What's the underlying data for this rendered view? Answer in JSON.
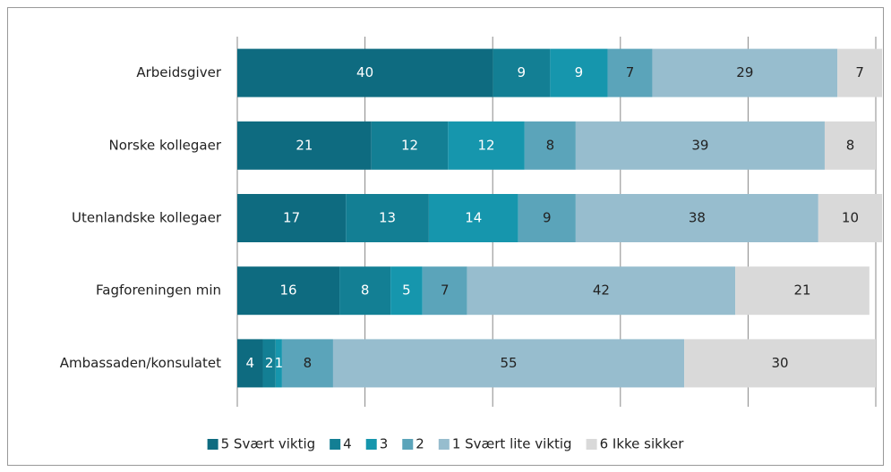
{
  "chart_data": {
    "type": "stacked_barh",
    "categories": [
      "Arbeidsgiver",
      "Norske kollegaer",
      "Utenlandske kollegaer",
      "Fagforeningen min",
      "Ambassaden/konsulatet"
    ],
    "series": [
      {
        "name": "5 Svært viktig",
        "color": "#0e6b80",
        "values": [
          40,
          21,
          17,
          16,
          4
        ]
      },
      {
        "name": "4",
        "color": "#137f94",
        "values": [
          9,
          12,
          13,
          8,
          2
        ]
      },
      {
        "name": "3",
        "color": "#1696ad",
        "values": [
          9,
          12,
          14,
          5,
          1
        ]
      },
      {
        "name": "2",
        "color": "#5ba4ba",
        "values": [
          7,
          8,
          9,
          7,
          8
        ]
      },
      {
        "name": "1 Svært lite viktig",
        "color": "#97bdce",
        "values": [
          29,
          39,
          38,
          42,
          55
        ]
      },
      {
        "name": "6 Ikke sikker",
        "color": "#d9d9d9",
        "values": [
          7,
          8,
          10,
          21,
          30
        ]
      }
    ],
    "xlim": [
      0,
      100
    ],
    "xticks": [
      0,
      20,
      40,
      60,
      80,
      100
    ],
    "grid": true,
    "legend": "bottom"
  }
}
